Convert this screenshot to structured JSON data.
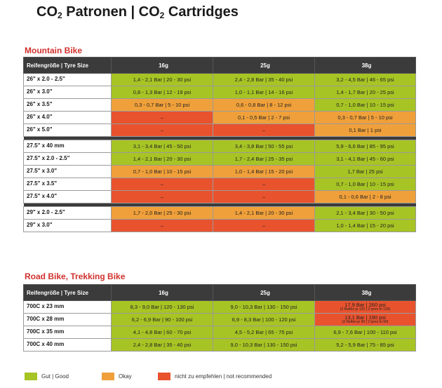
{
  "title": {
    "text1": "CO",
    "sub1": "2",
    "text2": " Patronen | CO",
    "sub2": "2",
    "text3": " Cartridges"
  },
  "colors": {
    "good": "#a6c424",
    "okay": "#f0a03a",
    "not_recommended": "#e8532e",
    "header": "#3b3b3b",
    "section_title": "#d0312d"
  },
  "headers": [
    "Reifengröße | Tyre Size",
    "16g",
    "25g",
    "38g"
  ],
  "mountain": {
    "title": "Mountain Bike",
    "groups": [
      [
        {
          "size": "26\" x 2.0 - 2.5\"",
          "cells": [
            {
              "text": "1,4 - 2,1 Bar | 20 - 30 psi",
              "rating": "g"
            },
            {
              "text": "2,4 - 2,8 Bar | 35 - 40 psi",
              "rating": "g"
            },
            {
              "text": "3,2 - 4,5 Bar | 46 - 65 psi",
              "rating": "g"
            }
          ]
        },
        {
          "size": "26\" x 3.0\"",
          "cells": [
            {
              "text": "0,8 - 1,3 Bar | 12 - 19 psi",
              "rating": "g"
            },
            {
              "text": "1,0 - 1,1 Bar | 14 - 16 psi",
              "rating": "g"
            },
            {
              "text": "1,4 - 1,7 Bar | 20 - 25 psi",
              "rating": "g"
            }
          ]
        },
        {
          "size": "26\" x 3.5\"",
          "cells": [
            {
              "text": "0,3 - 0,7 Bar | 5 - 10 psi",
              "rating": "o"
            },
            {
              "text": "0,6 - 0,8 Bar | 8 - 12 psi",
              "rating": "o"
            },
            {
              "text": "0,7 - 1,0 Bar | 10 - 15 psi",
              "rating": "g"
            }
          ]
        },
        {
          "size": "26\" x 4.0\"",
          "cells": [
            {
              "text": "–",
              "rating": "r"
            },
            {
              "text": "0,1 - 0,5 Bar | 2 - 7 psi",
              "rating": "o"
            },
            {
              "text": "0,3 - 0,7 Bar | 5 - 10 psi",
              "rating": "o"
            }
          ]
        },
        {
          "size": "26\" x 5.0\"",
          "cells": [
            {
              "text": "–",
              "rating": "r"
            },
            {
              "text": "–",
              "rating": "r"
            },
            {
              "text": "0,1 Bar | 1 psi",
              "rating": "o"
            }
          ]
        }
      ],
      [
        {
          "size": "27.5\" x 40 mm",
          "cells": [
            {
              "text": "3,1 - 3,4 Bar | 45 - 50 psi",
              "rating": "g"
            },
            {
              "text": "3,4 - 3,8 Bar | 50 - 55 psi",
              "rating": "g"
            },
            {
              "text": "5,9 - 6,6 Bar | 85 - 95 psi",
              "rating": "g"
            }
          ]
        },
        {
          "size": "27.5\" x 2.0 - 2.5\"",
          "cells": [
            {
              "text": "1,4 - 2,1 Bar | 20 - 30 psi",
              "rating": "g"
            },
            {
              "text": "1,7 - 2,4 Bar | 25 - 35 psi",
              "rating": "g"
            },
            {
              "text": "3,1 - 4,1 Bar | 45 - 60 psi",
              "rating": "g"
            }
          ]
        },
        {
          "size": "27.5\" x 3.0\"",
          "cells": [
            {
              "text": "0,7 - 1,0 Bar | 10 - 15 psi",
              "rating": "o"
            },
            {
              "text": "1,0 - 1,4 Bar | 15 - 20 psi",
              "rating": "o"
            },
            {
              "text": "1,7 Bar | 25 psi",
              "rating": "g"
            }
          ]
        },
        {
          "size": "27.5\" x 3.5\"",
          "cells": [
            {
              "text": "–",
              "rating": "r"
            },
            {
              "text": "–",
              "rating": "r"
            },
            {
              "text": "0,7 - 1,0 Bar | 10 - 15 psi",
              "rating": "g"
            }
          ]
        },
        {
          "size": "27.5\" x 4.0\"",
          "cells": [
            {
              "text": "–",
              "rating": "r"
            },
            {
              "text": "–",
              "rating": "r"
            },
            {
              "text": "0,1 - 0,6 Bar | 2 - 8 psi",
              "rating": "o"
            }
          ]
        }
      ],
      [
        {
          "size": "29\" x 2.0 - 2.5\"",
          "cells": [
            {
              "text": "1,7 - 2,0 Bar | 25 - 30 psi",
              "rating": "o"
            },
            {
              "text": "1,4 - 2,1 Bar | 20 - 30 psi",
              "rating": "o"
            },
            {
              "text": "2,1 - 3,4 Bar | 30 - 50 psi",
              "rating": "g"
            }
          ]
        },
        {
          "size": "29\" x 3.0\"",
          "cells": [
            {
              "text": "–",
              "rating": "r"
            },
            {
              "text": "–",
              "rating": "r"
            },
            {
              "text": "1,0 - 1,4 Bar | 15 - 20 psi",
              "rating": "g"
            }
          ]
        }
      ]
    ]
  },
  "road": {
    "title": "Road Bike, Trekking Bike",
    "groups": [
      [
        {
          "size": "700C x 23 mm",
          "cells": [
            {
              "text": "8,3 - 9,0 Bar | 120 - 130 psi",
              "rating": "g"
            },
            {
              "text": "9,0 - 10,3 Bar | 130 - 150 psi",
              "rating": "g"
            },
            {
              "text": "17,9 Bar | 260 psi",
              "note": "(2 Reifen je 120 | 2 tyres to 120)",
              "rating": "r"
            }
          ]
        },
        {
          "size": "700C x 28 mm",
          "cells": [
            {
              "text": "6,2 - 6,9 Bar | 90 - 100 psi",
              "rating": "g"
            },
            {
              "text": "6,9 - 8,3 Bar | 100 - 120 psi",
              "rating": "g"
            },
            {
              "text": "13,1 Bar | 190 psi",
              "note": "(2 Reifen je 90 | 2 tyres to 90)",
              "rating": "r"
            }
          ]
        },
        {
          "size": "700C x 35 mm",
          "cells": [
            {
              "text": "4,1 - 4,8 Bar | 60 - 70 psi",
              "rating": "g"
            },
            {
              "text": "4,5 - 5,2 Bar | 65 - 75 psi",
              "rating": "g"
            },
            {
              "text": "6,9 - 7,6 Bar | 100 - 110 psi",
              "rating": "g"
            }
          ]
        },
        {
          "size": "700C x 40 mm",
          "cells": [
            {
              "text": "2,4 - 2,8 Bar | 35 - 40 psi",
              "rating": "g"
            },
            {
              "text": "9,0 - 10,3 Bar | 130 - 150 psi",
              "rating": "g"
            },
            {
              "text": "5,2 - 5,9 Bar | 75 - 85 psi",
              "rating": "g"
            }
          ]
        }
      ]
    ]
  },
  "legend": [
    {
      "label": "Gut | Good",
      "rating": "g"
    },
    {
      "label": "Okay",
      "rating": "o"
    },
    {
      "label": "nicht zu empfehlen | not recommended",
      "rating": "r"
    }
  ]
}
